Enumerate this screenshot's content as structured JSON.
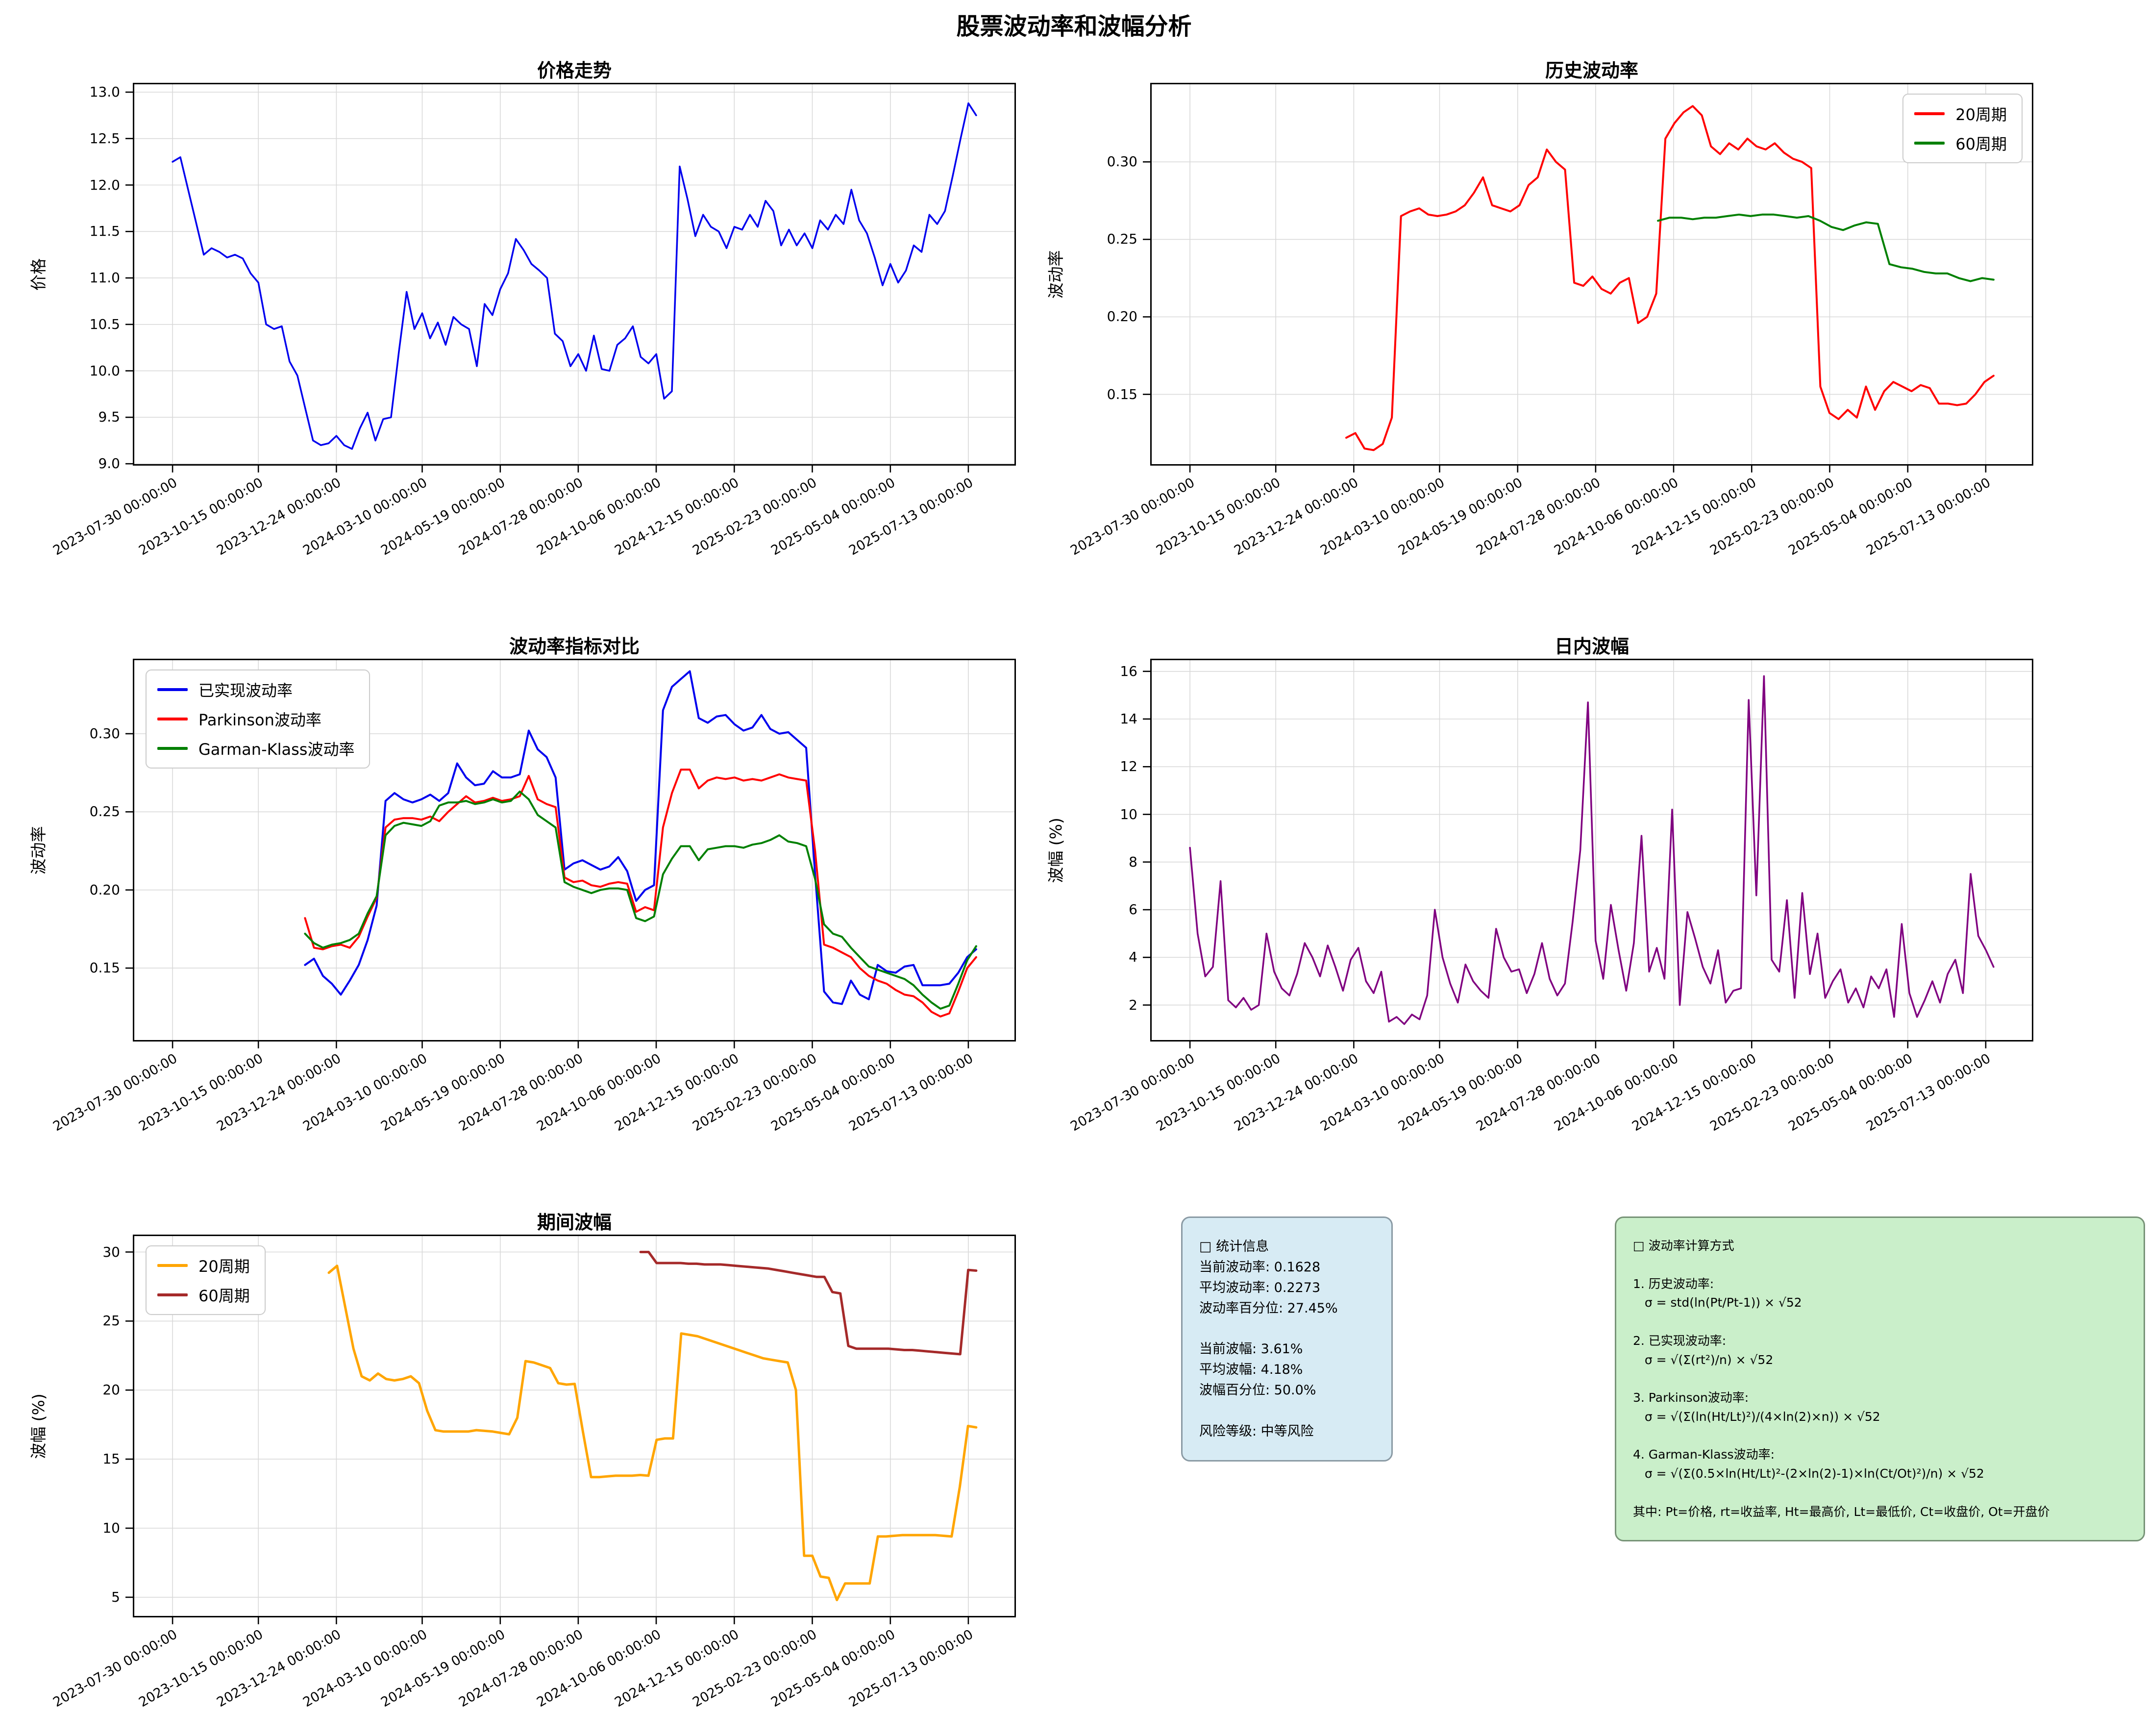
{
  "title": "股票波动率和波幅分析",
  "xtick_labels": [
    "2023-07-30 00:00:00",
    "2023-10-15 00:00:00",
    "2023-12-24 00:00:00",
    "2024-03-10 00:00:00",
    "2024-05-19 00:00:00",
    "2024-07-28 00:00:00",
    "2024-10-06 00:00:00",
    "2024-12-15 00:00:00",
    "2025-02-23 00:00:00",
    "2025-05-04 00:00:00",
    "2025-07-13 00:00:00"
  ],
  "chart_data": [
    {
      "id": "price",
      "type": "line",
      "title": "价格走势",
      "ylabel": "价格",
      "ydecimals": 1,
      "ylim": [
        8.98,
        13.1
      ],
      "yticks": [
        9.0,
        9.5,
        10.0,
        10.5,
        11.0,
        11.5,
        12.0,
        12.5,
        13.0
      ],
      "grid": true,
      "legend": null,
      "series": [
        {
          "name": "价格",
          "color": "#0000ee",
          "width": 3.5,
          "span": [
            0.045,
            0.955
          ],
          "values": [
            12.25,
            12.3,
            11.95,
            11.6,
            11.25,
            11.32,
            11.28,
            11.22,
            11.25,
            11.21,
            11.05,
            10.95,
            10.5,
            10.45,
            10.48,
            10.1,
            9.95,
            9.6,
            9.25,
            9.2,
            9.22,
            9.3,
            9.2,
            9.16,
            9.38,
            9.55,
            9.25,
            9.48,
            9.5,
            10.2,
            10.85,
            10.45,
            10.62,
            10.35,
            10.52,
            10.28,
            10.58,
            10.5,
            10.45,
            10.05,
            10.72,
            10.6,
            10.88,
            11.05,
            11.42,
            11.3,
            11.15,
            11.08,
            11.0,
            10.4,
            10.32,
            10.05,
            10.18,
            10.0,
            10.38,
            10.02,
            10.0,
            10.28,
            10.35,
            10.48,
            10.15,
            10.08,
            10.18,
            9.7,
            9.78,
            12.2,
            11.85,
            11.45,
            11.68,
            11.55,
            11.5,
            11.32,
            11.55,
            11.52,
            11.68,
            11.55,
            11.83,
            11.72,
            11.35,
            11.52,
            11.35,
            11.48,
            11.32,
            11.62,
            11.52,
            11.68,
            11.58,
            11.95,
            11.62,
            11.48,
            11.22,
            10.92,
            11.15,
            10.95,
            11.08,
            11.35,
            11.28,
            11.68,
            11.58,
            11.72,
            12.1,
            12.5,
            12.88,
            12.75
          ]
        }
      ]
    },
    {
      "id": "histvol",
      "type": "line",
      "title": "历史波动率",
      "ylabel": "波动率",
      "ydecimals": 2,
      "ylim": [
        0.104,
        0.351
      ],
      "yticks": [
        0.15,
        0.2,
        0.25,
        0.3
      ],
      "grid": true,
      "legend": "tr",
      "series": [
        {
          "name": "20周期",
          "color": "#ff0000",
          "width": 4,
          "span": [
            0.222,
            0.955
          ],
          "values": [
            0.122,
            0.125,
            0.115,
            0.114,
            0.118,
            0.135,
            0.265,
            0.268,
            0.27,
            0.266,
            0.265,
            0.266,
            0.268,
            0.272,
            0.28,
            0.29,
            0.272,
            0.27,
            0.268,
            0.272,
            0.285,
            0.29,
            0.308,
            0.3,
            0.295,
            0.222,
            0.22,
            0.226,
            0.218,
            0.215,
            0.222,
            0.225,
            0.196,
            0.2,
            0.215,
            0.315,
            0.325,
            0.332,
            0.336,
            0.33,
            0.31,
            0.305,
            0.312,
            0.308,
            0.315,
            0.31,
            0.308,
            0.312,
            0.306,
            0.302,
            0.3,
            0.296,
            0.155,
            0.138,
            0.134,
            0.14,
            0.135,
            0.155,
            0.14,
            0.152,
            0.158,
            0.155,
            0.152,
            0.156,
            0.154,
            0.144,
            0.144,
            0.143,
            0.144,
            0.15,
            0.158,
            0.162
          ]
        },
        {
          "name": "60周期",
          "color": "#008000",
          "width": 4,
          "span": [
            0.575,
            0.955
          ],
          "values": [
            0.262,
            0.264,
            0.264,
            0.263,
            0.264,
            0.264,
            0.265,
            0.266,
            0.265,
            0.266,
            0.266,
            0.265,
            0.264,
            0.265,
            0.262,
            0.258,
            0.256,
            0.259,
            0.261,
            0.26,
            0.234,
            0.232,
            0.231,
            0.229,
            0.228,
            0.228,
            0.225,
            0.223,
            0.225,
            0.224
          ]
        }
      ]
    },
    {
      "id": "volcompare",
      "type": "line",
      "title": "波动率指标对比",
      "ylabel": "波动率",
      "ydecimals": 2,
      "ylim": [
        0.103,
        0.348
      ],
      "yticks": [
        0.15,
        0.2,
        0.25,
        0.3
      ],
      "grid": true,
      "legend": "tl",
      "series": [
        {
          "name": "已实现波动率",
          "color": "#0000ee",
          "width": 4,
          "span": [
            0.195,
            0.955
          ],
          "values": [
            0.152,
            0.156,
            0.145,
            0.14,
            0.133,
            0.142,
            0.152,
            0.168,
            0.19,
            0.257,
            0.262,
            0.258,
            0.256,
            0.258,
            0.261,
            0.257,
            0.262,
            0.281,
            0.272,
            0.267,
            0.268,
            0.276,
            0.272,
            0.272,
            0.274,
            0.302,
            0.29,
            0.285,
            0.272,
            0.213,
            0.217,
            0.219,
            0.216,
            0.213,
            0.215,
            0.221,
            0.212,
            0.193,
            0.2,
            0.203,
            0.315,
            0.33,
            0.335,
            0.34,
            0.31,
            0.307,
            0.311,
            0.312,
            0.306,
            0.302,
            0.304,
            0.312,
            0.303,
            0.3,
            0.301,
            0.296,
            0.291,
            0.21,
            0.135,
            0.128,
            0.127,
            0.142,
            0.133,
            0.13,
            0.152,
            0.148,
            0.147,
            0.151,
            0.152,
            0.139,
            0.139,
            0.139,
            0.14,
            0.147,
            0.157,
            0.162
          ]
        },
        {
          "name": "Parkinson波动率",
          "color": "#ff0000",
          "width": 4,
          "span": [
            0.195,
            0.955
          ],
          "values": [
            0.182,
            0.163,
            0.162,
            0.164,
            0.165,
            0.163,
            0.17,
            0.183,
            0.195,
            0.24,
            0.245,
            0.246,
            0.246,
            0.245,
            0.247,
            0.244,
            0.25,
            0.255,
            0.26,
            0.256,
            0.257,
            0.259,
            0.257,
            0.258,
            0.26,
            0.273,
            0.258,
            0.255,
            0.253,
            0.208,
            0.205,
            0.206,
            0.203,
            0.202,
            0.204,
            0.205,
            0.204,
            0.186,
            0.189,
            0.187,
            0.24,
            0.262,
            0.277,
            0.277,
            0.265,
            0.27,
            0.272,
            0.271,
            0.272,
            0.27,
            0.271,
            0.27,
            0.272,
            0.274,
            0.272,
            0.271,
            0.27,
            0.225,
            0.165,
            0.163,
            0.16,
            0.157,
            0.15,
            0.145,
            0.142,
            0.14,
            0.136,
            0.133,
            0.132,
            0.128,
            0.122,
            0.119,
            0.121,
            0.135,
            0.15,
            0.157
          ]
        },
        {
          "name": "Garman-Klass波动率",
          "color": "#008000",
          "width": 4,
          "span": [
            0.195,
            0.955
          ],
          "values": [
            0.172,
            0.166,
            0.163,
            0.165,
            0.166,
            0.168,
            0.172,
            0.185,
            0.196,
            0.235,
            0.241,
            0.243,
            0.242,
            0.241,
            0.244,
            0.254,
            0.256,
            0.256,
            0.257,
            0.255,
            0.256,
            0.258,
            0.256,
            0.257,
            0.263,
            0.258,
            0.248,
            0.244,
            0.24,
            0.205,
            0.202,
            0.2,
            0.198,
            0.2,
            0.201,
            0.201,
            0.2,
            0.182,
            0.18,
            0.183,
            0.21,
            0.22,
            0.228,
            0.228,
            0.219,
            0.226,
            0.227,
            0.228,
            0.228,
            0.227,
            0.229,
            0.23,
            0.232,
            0.235,
            0.231,
            0.23,
            0.228,
            0.207,
            0.178,
            0.172,
            0.17,
            0.163,
            0.157,
            0.151,
            0.149,
            0.147,
            0.145,
            0.143,
            0.139,
            0.133,
            0.128,
            0.124,
            0.126,
            0.14,
            0.155,
            0.164
          ]
        }
      ]
    },
    {
      "id": "intraday",
      "type": "line",
      "title": "日内波幅",
      "ylabel": "波幅 (%)",
      "ydecimals": 0,
      "ylim": [
        0.47,
        16.53
      ],
      "yticks": [
        2,
        4,
        6,
        8,
        10,
        12,
        14,
        16
      ],
      "grid": true,
      "legend": null,
      "series": [
        {
          "name": "日内波幅",
          "color": "#800080",
          "width": 3.5,
          "span": [
            0.045,
            0.955
          ],
          "values": [
            8.6,
            5.0,
            3.2,
            3.6,
            7.2,
            2.2,
            1.9,
            2.3,
            1.8,
            2.0,
            5.0,
            3.4,
            2.7,
            2.4,
            3.3,
            4.6,
            4.0,
            3.2,
            4.5,
            3.6,
            2.6,
            3.9,
            4.4,
            3.0,
            2.5,
            3.4,
            1.3,
            1.5,
            1.2,
            1.6,
            1.4,
            2.4,
            6.0,
            4.0,
            2.9,
            2.1,
            3.7,
            3.0,
            2.6,
            2.3,
            5.2,
            4.0,
            3.4,
            3.5,
            2.5,
            3.3,
            4.6,
            3.1,
            2.4,
            2.9,
            5.5,
            8.5,
            14.7,
            4.7,
            3.1,
            6.2,
            4.3,
            2.6,
            4.6,
            9.1,
            3.4,
            4.4,
            3.1,
            10.2,
            2.0,
            5.9,
            4.8,
            3.6,
            2.9,
            4.3,
            2.1,
            2.6,
            2.7,
            14.8,
            6.6,
            15.8,
            3.9,
            3.4,
            6.4,
            2.3,
            6.7,
            3.3,
            5.0,
            2.3,
            3.0,
            3.5,
            2.1,
            2.7,
            1.9,
            3.2,
            2.7,
            3.5,
            1.5,
            5.4,
            2.5,
            1.5,
            2.2,
            3.0,
            2.1,
            3.3,
            3.9,
            2.5,
            7.5,
            4.9,
            4.3,
            3.6
          ]
        }
      ]
    },
    {
      "id": "periodamp",
      "type": "line",
      "title": "期间波幅",
      "ylabel": "波幅 (%)",
      "ydecimals": 0,
      "ylim": [
        3.54,
        31.26
      ],
      "yticks": [
        5,
        10,
        15,
        20,
        25,
        30
      ],
      "grid": true,
      "legend": "tl",
      "series": [
        {
          "name": "20周期",
          "color": "#ffa500",
          "width": 5,
          "span": [
            0.222,
            0.955
          ],
          "values": [
            28.5,
            29.0,
            26.0,
            23.0,
            21.0,
            20.7,
            21.2,
            20.8,
            20.7,
            20.8,
            21.0,
            20.5,
            18.5,
            17.1,
            17.0,
            17.0,
            17.0,
            17.0,
            17.1,
            17.05,
            17.0,
            16.9,
            16.8,
            18.0,
            22.1,
            22.0,
            21.8,
            21.6,
            20.5,
            20.4,
            20.45,
            17.0,
            13.7,
            13.7,
            13.75,
            13.8,
            13.8,
            13.8,
            13.85,
            13.8,
            16.4,
            16.5,
            16.5,
            24.1,
            24.0,
            23.9,
            23.7,
            23.5,
            23.3,
            23.1,
            22.9,
            22.7,
            22.5,
            22.3,
            22.2,
            22.1,
            22.0,
            20.0,
            8.0,
            8.0,
            6.5,
            6.4,
            4.8,
            6.0,
            6.0,
            6.0,
            6.0,
            9.4,
            9.4,
            9.45,
            9.5,
            9.5,
            9.5,
            9.5,
            9.5,
            9.45,
            9.4,
            13.0,
            17.4,
            17.3
          ]
        },
        {
          "name": "60周期",
          "color": "#a52a2a",
          "width": 5,
          "span": [
            0.575,
            0.955
          ],
          "values": [
            30.0,
            30.0,
            29.2,
            29.2,
            29.2,
            29.2,
            29.15,
            29.15,
            29.1,
            29.1,
            29.1,
            29.05,
            29.0,
            28.95,
            28.9,
            28.85,
            28.8,
            28.7,
            28.6,
            28.5,
            28.4,
            28.3,
            28.2,
            28.2,
            27.1,
            27.0,
            23.2,
            23.0,
            23.0,
            23.0,
            23.0,
            23.0,
            22.95,
            22.9,
            22.9,
            22.85,
            22.8,
            22.75,
            22.7,
            22.65,
            22.6,
            28.7,
            28.65
          ]
        }
      ]
    }
  ],
  "stats_box": {
    "lines": [
      "□ 统计信息",
      "当前波动率: 0.1628",
      "平均波动率: 0.2273",
      "波动率百分位: 27.45%",
      "",
      "当前波幅: 3.61%",
      "平均波幅: 4.18%",
      "波幅百分位: 50.0%",
      "",
      "风险等级: 中等风险"
    ]
  },
  "formula_box": {
    "lines": [
      "□ 波动率计算方式",
      "",
      "1. 历史波动率:",
      "   σ = std(ln(Pt/Pt-1)) × √52",
      "",
      "2. 已实现波动率:",
      "   σ = √(Σ(rt²)/n) × √52",
      "",
      "3. Parkinson波动率:",
      "   σ = √(Σ(ln(Ht/Lt)²)/(4×ln(2)×n)) × √52",
      "",
      "4. Garman-Klass波动率:",
      "   σ = √(Σ(0.5×ln(Ht/Lt)²-(2×ln(2)-1)×ln(Ct/Ot)²)/n) × √52",
      "",
      "其中: Pt=价格, rt=收益率, Ht=最高价, Lt=最低价, Ct=收盘价, Ot=开盘价"
    ]
  }
}
